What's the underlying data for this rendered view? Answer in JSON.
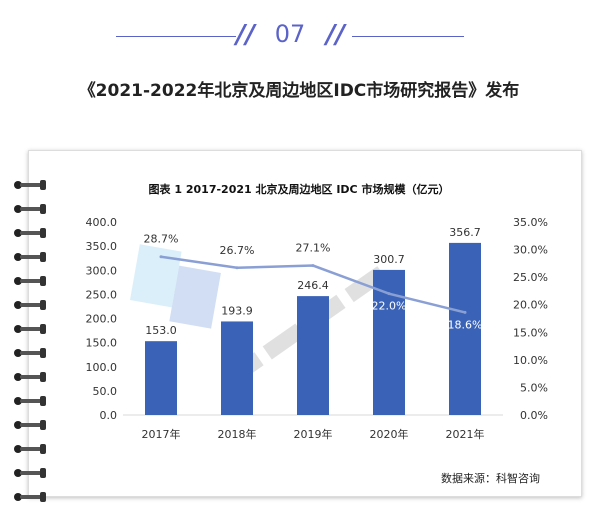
{
  "section_number": "07",
  "article_title": "《2021-2022年北京及周边地区IDC市场研究报告》发布",
  "source_text": "数据来源：科智咨询",
  "colors": {
    "accent": "#5b63c9",
    "bar": "#3a63b8",
    "line": "#8a9fd4",
    "text": "#333333"
  },
  "watermark_icon": "kezhi-logo-icon",
  "chart_data": {
    "type": "bar",
    "title": "图表 1 2017-2021 北京及周边地区 IDC 市场规模（亿元）",
    "categories": [
      "2017年",
      "2018年",
      "2019年",
      "2020年",
      "2021年"
    ],
    "series": [
      {
        "type": "bar",
        "axis": "left",
        "values": [
          153.0,
          193.9,
          246.4,
          300.7,
          356.7
        ],
        "labels": [
          "153.0",
          "193.9",
          "246.4",
          "300.7",
          "356.7"
        ]
      },
      {
        "type": "line",
        "axis": "right",
        "values": [
          28.7,
          26.7,
          27.1,
          22.0,
          18.6
        ],
        "labels": [
          "28.7%",
          "26.7%",
          "27.1%",
          "22.0%",
          "18.6%"
        ]
      }
    ],
    "ylim": [
      0,
      400
    ],
    "y_ticks": [
      "0.0",
      "50.0",
      "100.0",
      "150.0",
      "200.0",
      "250.0",
      "300.0",
      "350.0",
      "400.0"
    ],
    "y2lim": [
      0,
      35
    ],
    "y2_ticks": [
      "0.0%",
      "5.0%",
      "10.0%",
      "15.0%",
      "20.0%",
      "25.0%",
      "30.0%",
      "35.0%"
    ],
    "grid": false,
    "legend": "none"
  }
}
